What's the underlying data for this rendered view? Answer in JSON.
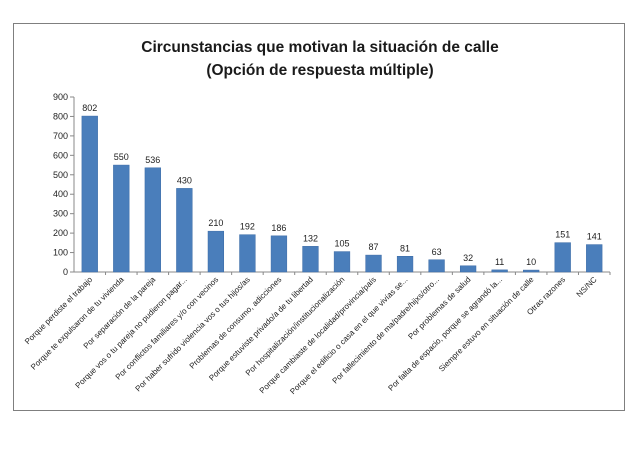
{
  "chart_data": {
    "type": "bar",
    "title": "Circunstancias que motivan la situación de calle",
    "subtitle": "(Opción de respuesta múltiple)",
    "categories": [
      "Porque perdiste el trabajo",
      "Porque te expulsaron de tu vivienda",
      "Por separación de la pareja",
      "Porque vos o tu pareja no pudieron pagar...",
      "Por conflictos familiares y/o con vecinos",
      "Por haber sufrido violencia vos o tus hijos/as",
      "Problemas de consumo, adicciones",
      "Porque estuviste privado/a de tu libertad",
      "Por hospitalización/institucionalización",
      "Porque cambiaste de localidad/provincia/país",
      "Porque el edificio o casa en el que vivías se...",
      "Por fallecimiento de ma/padre/hijxs/otro...",
      "Por problemas de salud",
      "Por falta de espacio, porque se agrandó la...",
      "Siempre estuvo en situación de calle",
      "Otras razones",
      "NS/NC"
    ],
    "values": [
      802,
      550,
      536,
      430,
      210,
      192,
      186,
      132,
      105,
      87,
      81,
      63,
      32,
      11,
      10,
      151,
      141
    ],
    "ylim": [
      0,
      900
    ],
    "yticks": [
      "0",
      "100",
      "200",
      "300",
      "400",
      "500",
      "600",
      "700",
      "800",
      "900"
    ],
    "grid": false,
    "legend": "none",
    "colors": {
      "bar": "#4a7ebb",
      "bar_edge": "#3a6aa5"
    }
  }
}
